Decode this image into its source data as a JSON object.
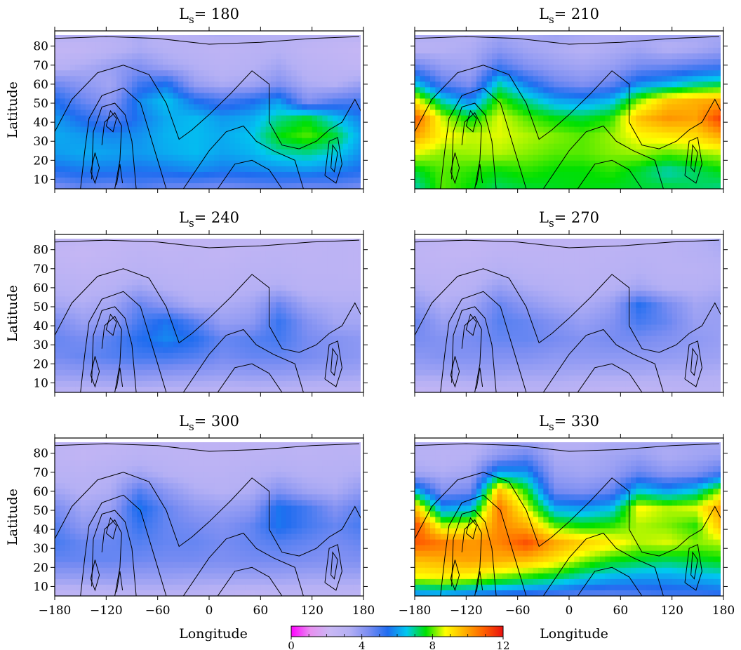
{
  "figure": {
    "xlabel_left": "Longitude",
    "xlabel_right": "Longitude",
    "ylabel": "Latitude"
  },
  "colorbar": {
    "min": 0,
    "max": 12,
    "tick_labels": [
      "0",
      "4",
      "8",
      "12"
    ],
    "colors": [
      "#ff00ff",
      "#e890f0",
      "#c9b8f4",
      "#b5b0f4",
      "#7a8df2",
      "#1f6cf0",
      "#00c8f0",
      "#00e000",
      "#ffff00",
      "#ffb000",
      "#ff6000",
      "#e81010"
    ]
  },
  "chart_data": [
    {
      "type": "heatmap",
      "title_prefix": "L",
      "title_sub": "s",
      "title_suffix": "= 180",
      "ylabel": "Latitude",
      "xlabel": "",
      "xlim": [
        -180,
        180
      ],
      "ylim": [
        5,
        88
      ],
      "x_ticks": [
        "-180",
        "-120",
        "-60",
        "0",
        "60",
        "120",
        "180"
      ],
      "y_ticks": [
        "10",
        "20",
        "30",
        "40",
        "50",
        "60",
        "70",
        "80"
      ],
      "x_tick_labels_shown": false,
      "field": [
        [
          3.5,
          3.4,
          3.2,
          3.5,
          3.0,
          3.3,
          3.6,
          3.4,
          3.2,
          3.4,
          3.0,
          3.2
        ],
        [
          2.5,
          2.6,
          3.0,
          3.4,
          3.2,
          3.0,
          2.8,
          3.0,
          3.2,
          2.7,
          2.6,
          2.4
        ],
        [
          3.0,
          3.4,
          3.8,
          4.2,
          3.6,
          3.3,
          3.0,
          3.2,
          3.6,
          3.0,
          2.8,
          2.6
        ],
        [
          4.5,
          4.0,
          3.6,
          5.0,
          5.5,
          3.8,
          3.4,
          3.6,
          4.2,
          3.4,
          3.2,
          3.8
        ],
        [
          5.5,
          4.6,
          4.0,
          5.8,
          6.5,
          5.5,
          5.0,
          5.4,
          6.0,
          4.2,
          4.8,
          5.0
        ],
        [
          6.0,
          5.4,
          4.8,
          5.6,
          6.2,
          6.4,
          6.0,
          6.2,
          7.0,
          7.5,
          6.5,
          5.6
        ],
        [
          6.2,
          6.0,
          5.8,
          5.9,
          6.3,
          6.4,
          6.2,
          6.5,
          7.6,
          8.0,
          7.4,
          6.0
        ],
        [
          6.0,
          6.2,
          6.1,
          6.0,
          6.2,
          6.4,
          6.1,
          6.3,
          6.8,
          7.0,
          6.6,
          5.8
        ],
        [
          5.4,
          5.6,
          5.6,
          5.5,
          5.6,
          5.8,
          5.6,
          5.7,
          5.8,
          5.9,
          5.7,
          5.4
        ],
        [
          4.2,
          4.6,
          4.4,
          4.8,
          4.5,
          4.4,
          4.3,
          4.5,
          4.6,
          4.4,
          4.5,
          4.3
        ]
      ]
    },
    {
      "type": "heatmap",
      "title_prefix": "L",
      "title_sub": "s",
      "title_suffix": "= 210",
      "ylabel": "",
      "xlabel": "",
      "xlim": [
        -180,
        180
      ],
      "ylim": [
        5,
        88
      ],
      "x_ticks": [
        "-180",
        "-120",
        "-60",
        "0",
        "60",
        "120",
        "180"
      ],
      "y_ticks": [
        "10",
        "20",
        "30",
        "40",
        "50",
        "60",
        "70",
        "80"
      ],
      "x_tick_labels_shown": false,
      "field": [
        [
          3.6,
          3.4,
          3.2,
          3.6,
          3.4,
          3.8,
          3.6,
          3.4,
          3.5,
          3.8,
          3.6,
          3.5
        ],
        [
          3.0,
          3.2,
          3.4,
          4.0,
          3.6,
          3.4,
          3.2,
          3.4,
          3.6,
          3.2,
          3.4,
          3.8
        ],
        [
          4.6,
          3.8,
          3.6,
          5.0,
          4.2,
          3.8,
          3.6,
          3.8,
          4.4,
          4.5,
          4.8,
          5.0
        ],
        [
          6.5,
          4.8,
          4.2,
          6.8,
          5.6,
          4.6,
          4.2,
          4.6,
          5.8,
          6.2,
          6.8,
          7.2
        ],
        [
          9.0,
          6.8,
          5.8,
          8.0,
          7.0,
          6.2,
          6.0,
          6.4,
          8.2,
          9.5,
          9.8,
          10.0
        ],
        [
          11.0,
          8.5,
          7.5,
          8.6,
          8.0,
          7.6,
          7.4,
          7.8,
          9.6,
          10.2,
          10.0,
          11.5
        ],
        [
          10.0,
          8.8,
          8.5,
          8.6,
          8.4,
          8.2,
          8.0,
          8.3,
          8.8,
          9.0,
          9.2,
          10.0
        ],
        [
          8.6,
          8.2,
          8.3,
          8.4,
          8.2,
          8.0,
          8.0,
          8.2,
          8.3,
          8.0,
          8.2,
          8.4
        ],
        [
          7.4,
          8.0,
          7.8,
          7.6,
          7.8,
          7.6,
          7.6,
          7.8,
          7.4,
          6.8,
          7.2,
          7.6
        ],
        [
          6.8,
          8.0,
          7.6,
          7.2,
          7.4,
          7.5,
          7.6,
          7.5,
          7.4,
          7.4,
          7.2,
          7.0
        ]
      ]
    },
    {
      "type": "heatmap",
      "title_prefix": "L",
      "title_sub": "s",
      "title_suffix": "= 240",
      "ylabel": "Latitude",
      "xlabel": "",
      "xlim": [
        -180,
        180
      ],
      "ylim": [
        5,
        88
      ],
      "x_ticks": [
        "-180",
        "-120",
        "-60",
        "0",
        "60",
        "120",
        "180"
      ],
      "y_ticks": [
        "10",
        "20",
        "30",
        "40",
        "50",
        "60",
        "70",
        "80"
      ],
      "x_tick_labels_shown": false,
      "field": [
        [
          3.0,
          2.8,
          2.6,
          2.7,
          2.4,
          2.6,
          2.8,
          2.7,
          2.6,
          2.8,
          2.9,
          2.8
        ],
        [
          2.6,
          2.4,
          2.6,
          2.8,
          2.7,
          2.8,
          2.6,
          2.8,
          2.9,
          2.8,
          2.9,
          2.8
        ],
        [
          2.8,
          2.7,
          2.8,
          3.0,
          2.9,
          2.8,
          2.8,
          3.0,
          3.0,
          2.9,
          2.9,
          2.8
        ],
        [
          3.2,
          3.0,
          3.2,
          3.6,
          3.2,
          3.0,
          3.0,
          3.2,
          3.4,
          3.0,
          3.0,
          3.0
        ],
        [
          3.6,
          3.4,
          3.6,
          4.6,
          4.0,
          3.4,
          3.4,
          3.6,
          4.6,
          3.6,
          3.4,
          3.4
        ],
        [
          4.4,
          3.8,
          4.0,
          5.0,
          5.6,
          4.8,
          3.8,
          4.0,
          5.2,
          4.2,
          3.6,
          3.6
        ],
        [
          4.6,
          4.4,
          4.8,
          5.4,
          5.8,
          5.4,
          4.6,
          4.8,
          5.0,
          4.4,
          4.2,
          4.0
        ],
        [
          4.4,
          4.6,
          4.8,
          5.0,
          5.0,
          4.8,
          4.4,
          4.6,
          4.6,
          4.4,
          4.2,
          4.0
        ],
        [
          3.8,
          3.9,
          4.0,
          4.1,
          4.0,
          3.9,
          3.8,
          3.9,
          3.9,
          3.8,
          3.7,
          3.6
        ],
        [
          3.0,
          3.0,
          3.1,
          3.1,
          3.0,
          3.0,
          2.9,
          3.0,
          3.0,
          2.9,
          2.9,
          2.8
        ]
      ]
    },
    {
      "type": "heatmap",
      "title_prefix": "L",
      "title_sub": "s",
      "title_suffix": "= 270",
      "ylabel": "",
      "xlabel": "",
      "xlim": [
        -180,
        180
      ],
      "ylim": [
        5,
        88
      ],
      "x_ticks": [
        "-180",
        "-120",
        "-60",
        "0",
        "60",
        "120",
        "180"
      ],
      "y_ticks": [
        "10",
        "20",
        "30",
        "40",
        "50",
        "60",
        "70",
        "80"
      ],
      "x_tick_labels_shown": false,
      "field": [
        [
          3.0,
          2.8,
          2.6,
          2.8,
          2.8,
          2.8,
          2.8,
          2.8,
          3.0,
          3.0,
          3.2,
          3.6
        ],
        [
          2.8,
          2.6,
          2.6,
          2.8,
          2.8,
          2.8,
          2.8,
          2.9,
          3.0,
          3.0,
          3.2,
          3.4
        ],
        [
          2.9,
          2.8,
          2.9,
          3.2,
          3.0,
          2.9,
          2.9,
          3.0,
          3.2,
          3.0,
          3.0,
          3.2
        ],
        [
          3.4,
          3.0,
          3.2,
          3.8,
          3.4,
          3.2,
          3.0,
          3.2,
          3.6,
          3.2,
          3.2,
          3.4
        ],
        [
          4.0,
          3.4,
          3.6,
          4.6,
          4.0,
          3.6,
          3.4,
          3.8,
          5.4,
          4.4,
          3.6,
          3.8
        ],
        [
          4.6,
          3.8,
          4.0,
          4.8,
          4.6,
          4.2,
          3.8,
          4.2,
          5.0,
          4.6,
          3.8,
          3.8
        ],
        [
          4.4,
          4.2,
          4.4,
          4.6,
          4.6,
          4.4,
          4.2,
          4.4,
          4.4,
          4.2,
          4.0,
          3.8
        ],
        [
          4.0,
          4.2,
          4.2,
          4.2,
          4.2,
          4.0,
          4.0,
          4.0,
          4.0,
          3.9,
          3.8,
          3.7
        ],
        [
          3.6,
          3.6,
          3.7,
          3.7,
          3.6,
          3.6,
          3.5,
          3.5,
          3.5,
          3.4,
          3.4,
          3.3
        ],
        [
          2.4,
          2.6,
          2.8,
          3.0,
          3.0,
          3.0,
          2.8,
          2.6,
          2.6,
          2.8,
          3.0,
          3.0
        ]
      ]
    },
    {
      "type": "heatmap",
      "title_prefix": "L",
      "title_sub": "s",
      "title_suffix": "= 300",
      "ylabel": "Latitude",
      "xlabel": "",
      "xlim": [
        -180,
        180
      ],
      "ylim": [
        5,
        88
      ],
      "x_ticks": [
        "-180",
        "-120",
        "-60",
        "0",
        "60",
        "120",
        "180"
      ],
      "y_ticks": [
        "10",
        "20",
        "30",
        "40",
        "50",
        "60",
        "70",
        "80"
      ],
      "x_tick_labels_shown": true,
      "field": [
        [
          3.0,
          2.8,
          2.6,
          2.8,
          2.8,
          2.8,
          2.8,
          2.8,
          2.8,
          2.9,
          2.9,
          2.8
        ],
        [
          2.8,
          2.6,
          2.8,
          3.0,
          2.9,
          2.8,
          2.8,
          2.9,
          3.0,
          2.9,
          3.0,
          3.0
        ],
        [
          3.0,
          3.0,
          3.2,
          3.6,
          3.2,
          3.0,
          3.0,
          3.2,
          3.4,
          3.2,
          3.2,
          3.4
        ],
        [
          3.6,
          3.2,
          3.4,
          4.8,
          4.0,
          3.4,
          3.2,
          3.4,
          4.2,
          3.6,
          3.4,
          4.0
        ],
        [
          4.4,
          3.6,
          3.8,
          5.6,
          4.6,
          4.0,
          3.8,
          4.0,
          5.6,
          5.0,
          4.2,
          4.8
        ],
        [
          4.8,
          4.0,
          4.2,
          5.2,
          4.6,
          4.4,
          4.2,
          4.6,
          5.6,
          5.0,
          4.6,
          5.0
        ],
        [
          5.0,
          4.6,
          4.6,
          4.8,
          4.6,
          4.6,
          4.4,
          4.6,
          4.8,
          4.6,
          4.4,
          4.6
        ],
        [
          4.6,
          4.6,
          4.6,
          4.5,
          4.4,
          4.4,
          4.3,
          4.4,
          4.4,
          4.3,
          4.2,
          4.3
        ],
        [
          3.8,
          3.8,
          3.9,
          3.8,
          3.8,
          3.7,
          3.7,
          3.7,
          3.7,
          3.6,
          3.6,
          3.6
        ],
        [
          2.6,
          2.8,
          2.8,
          3.0,
          3.0,
          3.0,
          2.8,
          2.6,
          2.8,
          2.8,
          2.8,
          2.8
        ]
      ]
    },
    {
      "type": "heatmap",
      "title_prefix": "L",
      "title_sub": "s",
      "title_suffix": "= 330",
      "ylabel": "",
      "xlabel": "",
      "xlim": [
        -180,
        180
      ],
      "ylim": [
        5,
        88
      ],
      "x_ticks": [
        "-180",
        "-120",
        "-60",
        "0",
        "60",
        "120",
        "180"
      ],
      "y_ticks": [
        "10",
        "20",
        "30",
        "40",
        "50",
        "60",
        "70",
        "80"
      ],
      "x_tick_labels_shown": true,
      "field": [
        [
          3.4,
          3.2,
          3.0,
          3.4,
          3.4,
          3.2,
          3.2,
          3.4,
          3.4,
          3.6,
          3.6,
          3.4
        ],
        [
          3.2,
          3.0,
          3.2,
          4.0,
          4.6,
          3.4,
          3.4,
          3.6,
          3.8,
          3.4,
          3.6,
          3.8
        ],
        [
          3.6,
          3.4,
          3.6,
          6.2,
          6.0,
          3.8,
          3.6,
          3.8,
          4.6,
          4.0,
          4.2,
          5.0
        ],
        [
          6.4,
          4.2,
          4.4,
          9.6,
          7.6,
          4.4,
          4.2,
          4.6,
          6.6,
          6.0,
          6.6,
          8.4
        ],
        [
          9.6,
          6.0,
          6.4,
          10.6,
          8.6,
          6.2,
          6.0,
          6.4,
          8.8,
          8.4,
          8.6,
          10.2
        ],
        [
          11.2,
          8.4,
          8.6,
          10.4,
          9.8,
          8.0,
          7.6,
          7.8,
          8.4,
          8.2,
          7.8,
          9.8
        ],
        [
          11.0,
          10.6,
          10.2,
          10.4,
          11.2,
          10.0,
          9.4,
          9.0,
          8.4,
          8.6,
          8.2,
          8.4
        ],
        [
          9.6,
          9.8,
          10.0,
          9.8,
          9.6,
          9.0,
          8.2,
          7.6,
          7.4,
          7.2,
          7.4,
          7.6
        ],
        [
          8.6,
          8.8,
          8.6,
          8.0,
          7.6,
          7.2,
          6.6,
          6.2,
          6.0,
          6.0,
          6.2,
          6.4
        ],
        [
          5.6,
          5.8,
          5.4,
          5.2,
          5.0,
          4.8,
          4.6,
          4.6,
          4.8,
          5.0,
          5.0,
          5.2
        ]
      ]
    }
  ]
}
